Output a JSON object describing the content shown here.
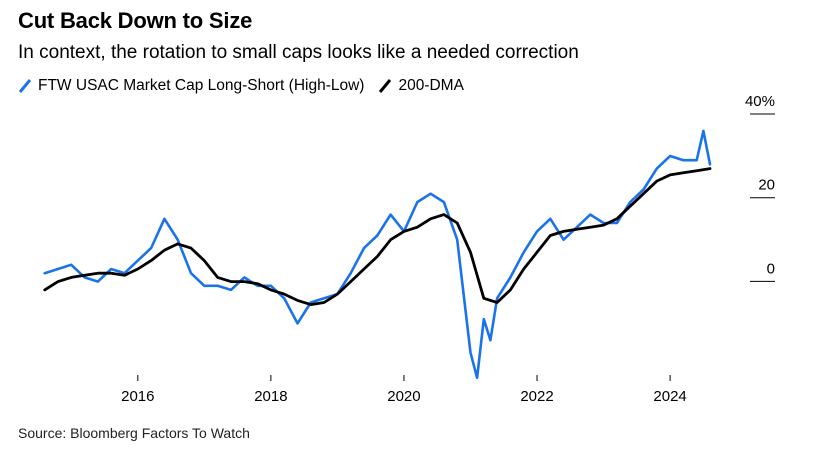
{
  "title": "Cut Back Down to Size",
  "subtitle": "In context, the rotation to small caps looks like a needed correction",
  "source": "Source: Bloomberg Factors To Watch",
  "colors": {
    "blue": "#1a73e8",
    "black": "#000000"
  },
  "chart_data": {
    "type": "line",
    "series": [
      {
        "name": "FTW USAC Market Cap Long-Short (High-Low)",
        "color": "#1a73e8",
        "x": [
          2014.6,
          2014.8,
          2015.0,
          2015.2,
          2015.4,
          2015.6,
          2015.8,
          2016.0,
          2016.2,
          2016.4,
          2016.6,
          2016.8,
          2017.0,
          2017.2,
          2017.4,
          2017.6,
          2017.8,
          2018.0,
          2018.2,
          2018.4,
          2018.6,
          2018.8,
          2019.0,
          2019.2,
          2019.4,
          2019.6,
          2019.8,
          2020.0,
          2020.2,
          2020.4,
          2020.6,
          2020.8,
          2021.0,
          2021.1,
          2021.2,
          2021.3,
          2021.4,
          2021.6,
          2021.8,
          2022.0,
          2022.2,
          2022.4,
          2022.6,
          2022.8,
          2023.0,
          2023.2,
          2023.4,
          2023.6,
          2023.8,
          2024.0,
          2024.2,
          2024.4,
          2024.5,
          2024.6
        ],
        "y": [
          1,
          2,
          3,
          0,
          -1,
          2,
          1,
          4,
          7,
          14,
          9,
          1,
          -2,
          -2,
          -3,
          0,
          -2,
          -2,
          -5,
          -11,
          -6,
          -5,
          -4,
          1,
          7,
          10,
          15,
          11,
          18,
          20,
          18,
          9,
          -18,
          -24,
          -10,
          -15,
          -5,
          0,
          6,
          11,
          14,
          9,
          12,
          15,
          13,
          13,
          18,
          21,
          26,
          29,
          28,
          28,
          35,
          27
        ]
      },
      {
        "name": "200-DMA",
        "color": "#000000",
        "x": [
          2014.6,
          2014.8,
          2015.0,
          2015.2,
          2015.4,
          2015.6,
          2015.8,
          2016.0,
          2016.2,
          2016.4,
          2016.6,
          2016.8,
          2017.0,
          2017.2,
          2017.4,
          2017.6,
          2017.8,
          2018.0,
          2018.2,
          2018.4,
          2018.6,
          2018.8,
          2019.0,
          2019.2,
          2019.4,
          2019.6,
          2019.8,
          2020.0,
          2020.2,
          2020.4,
          2020.6,
          2020.8,
          2021.0,
          2021.2,
          2021.4,
          2021.6,
          2021.8,
          2022.0,
          2022.2,
          2022.4,
          2022.6,
          2022.8,
          2023.0,
          2023.2,
          2023.4,
          2023.6,
          2023.8,
          2024.0,
          2024.2,
          2024.4,
          2024.6
        ],
        "y": [
          -3,
          -1,
          0,
          0.5,
          1,
          1,
          0.5,
          2,
          4,
          6.5,
          8,
          7,
          4,
          0,
          -1,
          -1,
          -1.5,
          -3,
          -4,
          -5.5,
          -6.5,
          -6,
          -4,
          -1,
          2,
          5,
          9,
          11,
          12,
          14,
          15,
          13,
          6,
          -5,
          -6,
          -3,
          2,
          6,
          10,
          11,
          11.5,
          12,
          12.5,
          14,
          17,
          20,
          23,
          24.5,
          25,
          25.5,
          26
        ]
      }
    ],
    "x_ticks": [
      2016,
      2018,
      2020,
      2022,
      2024
    ],
    "y_ticks": [
      0,
      20,
      40
    ],
    "y_tick_labels": [
      "0",
      "20",
      "40%"
    ],
    "xlim": [
      2014.5,
      2024.75
    ],
    "ylim": [
      -25,
      40
    ],
    "grid": false,
    "legend": "top-left"
  }
}
